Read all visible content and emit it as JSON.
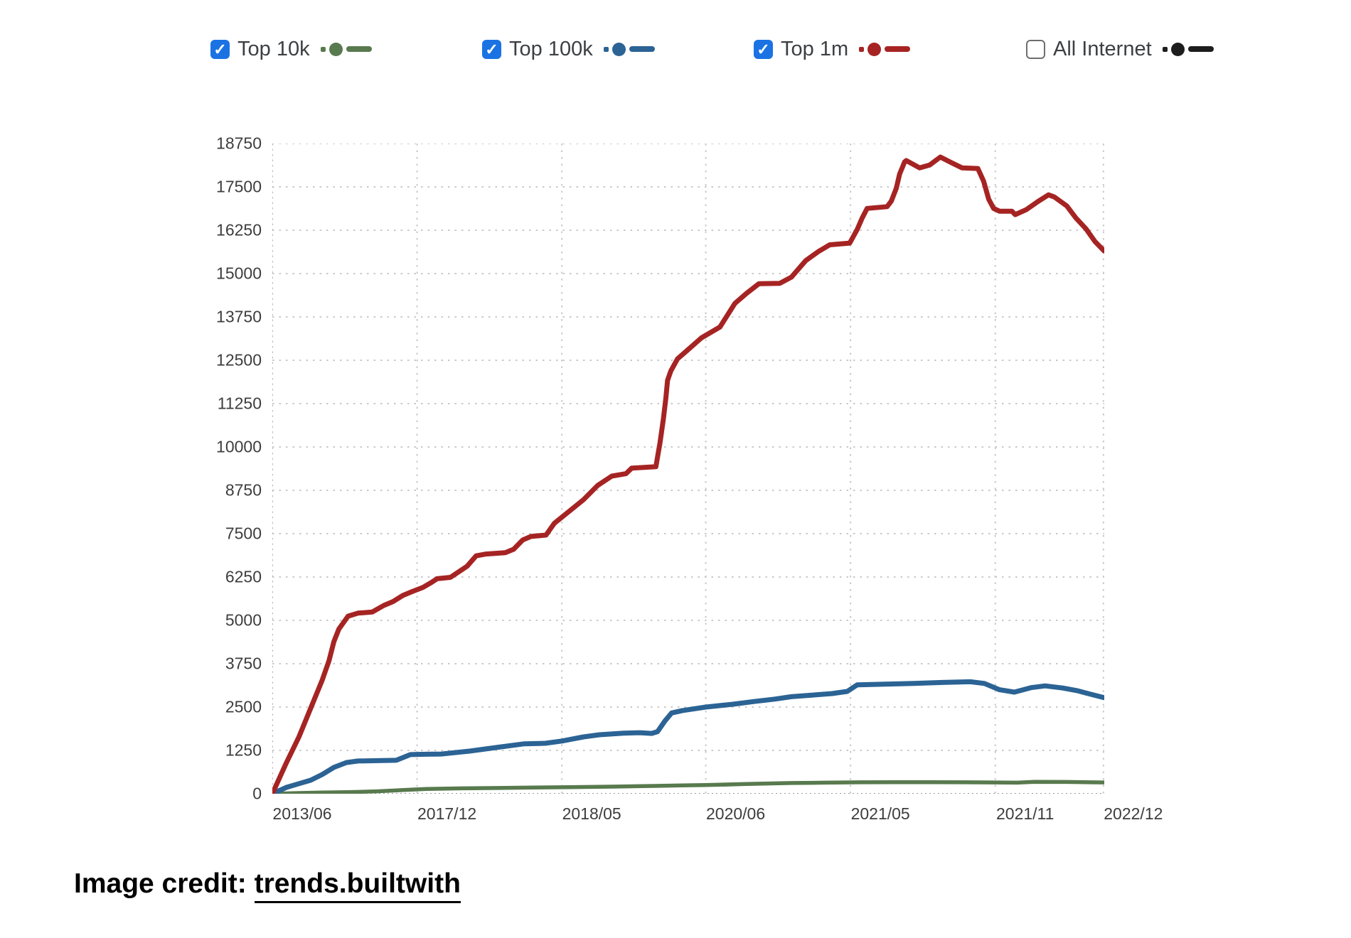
{
  "legend": {
    "items": [
      {
        "label": "Top 10k",
        "checked": true,
        "color": "#587a4e"
      },
      {
        "label": "Top 100k",
        "checked": true,
        "color": "#2b6394"
      },
      {
        "label": "Top 1m",
        "checked": true,
        "color": "#a52423"
      },
      {
        "label": "All Internet",
        "checked": false,
        "color": "#1d1d1d"
      }
    ]
  },
  "chart_data": {
    "type": "line",
    "title": "",
    "xlabel": "",
    "ylabel": "",
    "ylim": [
      0,
      18750
    ],
    "yticks": [
      0,
      1250,
      2500,
      3750,
      5000,
      6250,
      7500,
      8750,
      10000,
      11250,
      12500,
      13750,
      15000,
      16250,
      17500,
      18750
    ],
    "xticks": [
      {
        "label": "2013/06",
        "pos": 0
      },
      {
        "label": "2017/12",
        "pos": 17.4
      },
      {
        "label": "2018/05",
        "pos": 34.8
      },
      {
        "label": "2020/06",
        "pos": 52.1
      },
      {
        "label": "2021/05",
        "pos": 69.5
      },
      {
        "label": "2021/11",
        "pos": 86.9
      },
      {
        "label": "2022/12",
        "pos": 99.9
      }
    ],
    "grid": "dotted",
    "legend_position": "top",
    "x_axis_note": "categorical axis, pos = percent across plot width",
    "series": [
      {
        "name": "Top 10k",
        "color": "#587a4e",
        "visible": true,
        "points": [
          [
            0,
            0
          ],
          [
            3.2,
            20
          ],
          [
            6,
            35
          ],
          [
            9.1,
            45
          ],
          [
            12.6,
            70
          ],
          [
            16,
            110
          ],
          [
            18.5,
            140
          ],
          [
            22.8,
            155
          ],
          [
            27.1,
            165
          ],
          [
            31.4,
            180
          ],
          [
            35.6,
            190
          ],
          [
            40.8,
            205
          ],
          [
            45.9,
            225
          ],
          [
            49.3,
            240
          ],
          [
            52.1,
            250
          ],
          [
            57,
            280
          ],
          [
            62.4,
            310
          ],
          [
            66.4,
            320
          ],
          [
            70.7,
            330
          ],
          [
            75,
            335
          ],
          [
            79.2,
            335
          ],
          [
            83.5,
            330
          ],
          [
            86.9,
            325
          ],
          [
            89.5,
            320
          ],
          [
            91.6,
            345
          ],
          [
            95.5,
            340
          ],
          [
            100,
            325
          ]
        ]
      },
      {
        "name": "Top 100k",
        "color": "#2b6394",
        "visible": true,
        "points": [
          [
            0,
            0
          ],
          [
            1.7,
            185
          ],
          [
            3.2,
            290
          ],
          [
            4.6,
            390
          ],
          [
            6,
            555
          ],
          [
            7.4,
            760
          ],
          [
            8.9,
            900
          ],
          [
            10.3,
            945
          ],
          [
            14.9,
            965
          ],
          [
            16.6,
            1130
          ],
          [
            18.5,
            1140
          ],
          [
            20.3,
            1145
          ],
          [
            23.7,
            1230
          ],
          [
            27.1,
            1340
          ],
          [
            30.3,
            1440
          ],
          [
            32.8,
            1455
          ],
          [
            34.8,
            1520
          ],
          [
            37.4,
            1640
          ],
          [
            39.3,
            1700
          ],
          [
            42.2,
            1745
          ],
          [
            44.2,
            1760
          ],
          [
            45.6,
            1740
          ],
          [
            46.3,
            1790
          ],
          [
            47.2,
            2100
          ],
          [
            48,
            2330
          ],
          [
            49.3,
            2400
          ],
          [
            52.1,
            2500
          ],
          [
            55.3,
            2580
          ],
          [
            57.9,
            2660
          ],
          [
            60.4,
            2730
          ],
          [
            62.4,
            2800
          ],
          [
            64.7,
            2840
          ],
          [
            67.3,
            2890
          ],
          [
            69.1,
            2950
          ],
          [
            70.3,
            3140
          ],
          [
            73.7,
            3160
          ],
          [
            77.1,
            3180
          ],
          [
            80.5,
            3210
          ],
          [
            83.9,
            3230
          ],
          [
            85.6,
            3180
          ],
          [
            87.4,
            3000
          ],
          [
            89.2,
            2930
          ],
          [
            91.2,
            3060
          ],
          [
            92.9,
            3110
          ],
          [
            95,
            3050
          ],
          [
            96.8,
            2970
          ],
          [
            98.5,
            2860
          ],
          [
            100,
            2770
          ]
        ]
      },
      {
        "name": "Top 1m",
        "color": "#a52423",
        "visible": true,
        "points": [
          [
            0,
            0
          ],
          [
            1.7,
            900
          ],
          [
            3.2,
            1640
          ],
          [
            4.6,
            2460
          ],
          [
            6,
            3280
          ],
          [
            6.8,
            3830
          ],
          [
            7.4,
            4390
          ],
          [
            8,
            4750
          ],
          [
            9.1,
            5120
          ],
          [
            10.3,
            5210
          ],
          [
            12,
            5240
          ],
          [
            13.4,
            5430
          ],
          [
            14.5,
            5540
          ],
          [
            15.7,
            5720
          ],
          [
            16.8,
            5830
          ],
          [
            18.1,
            5950
          ],
          [
            19.1,
            6090
          ],
          [
            19.8,
            6200
          ],
          [
            21.4,
            6240
          ],
          [
            22.6,
            6430
          ],
          [
            23.4,
            6560
          ],
          [
            24.5,
            6860
          ],
          [
            25.6,
            6910
          ],
          [
            28,
            6950
          ],
          [
            29,
            7050
          ],
          [
            30.1,
            7320
          ],
          [
            31.1,
            7420
          ],
          [
            32.9,
            7460
          ],
          [
            33.9,
            7800
          ],
          [
            35.6,
            8130
          ],
          [
            37.4,
            8480
          ],
          [
            39.1,
            8890
          ],
          [
            40.8,
            9160
          ],
          [
            42.5,
            9230
          ],
          [
            43.2,
            9390
          ],
          [
            46.1,
            9430
          ],
          [
            46.6,
            10120
          ],
          [
            47,
            10800
          ],
          [
            47.3,
            11400
          ],
          [
            47.5,
            11920
          ],
          [
            47.9,
            12190
          ],
          [
            48.7,
            12540
          ],
          [
            49.9,
            12790
          ],
          [
            51.6,
            13150
          ],
          [
            53.8,
            13460
          ],
          [
            55.6,
            14140
          ],
          [
            57,
            14430
          ],
          [
            58.5,
            14710
          ],
          [
            61,
            14720
          ],
          [
            62.4,
            14900
          ],
          [
            64.1,
            15370
          ],
          [
            65.6,
            15630
          ],
          [
            67,
            15830
          ],
          [
            69.4,
            15880
          ],
          [
            70.3,
            16270
          ],
          [
            70.9,
            16600
          ],
          [
            71.5,
            16880
          ],
          [
            73.9,
            16930
          ],
          [
            74.4,
            17090
          ],
          [
            75,
            17460
          ],
          [
            75.4,
            17870
          ],
          [
            76,
            18220
          ],
          [
            76.2,
            18260
          ],
          [
            77.8,
            18050
          ],
          [
            79,
            18130
          ],
          [
            80.3,
            18360
          ],
          [
            81.6,
            18200
          ],
          [
            82.9,
            18050
          ],
          [
            84.8,
            18030
          ],
          [
            85.5,
            17660
          ],
          [
            86.1,
            17150
          ],
          [
            86.7,
            16880
          ],
          [
            87.4,
            16800
          ],
          [
            88.9,
            16800
          ],
          [
            89.3,
            16700
          ],
          [
            90.6,
            16840
          ],
          [
            92.1,
            17090
          ],
          [
            93.3,
            17270
          ],
          [
            94,
            17210
          ],
          [
            95.5,
            16950
          ],
          [
            96.6,
            16600
          ],
          [
            97.8,
            16290
          ],
          [
            98.9,
            15920
          ],
          [
            100,
            15650
          ]
        ]
      },
      {
        "name": "All Internet",
        "color": "#1d1d1d",
        "visible": false,
        "points": []
      }
    ]
  },
  "footer": {
    "credit_prefix": "Image credit: ",
    "credit_link": "trends.builtwith"
  }
}
